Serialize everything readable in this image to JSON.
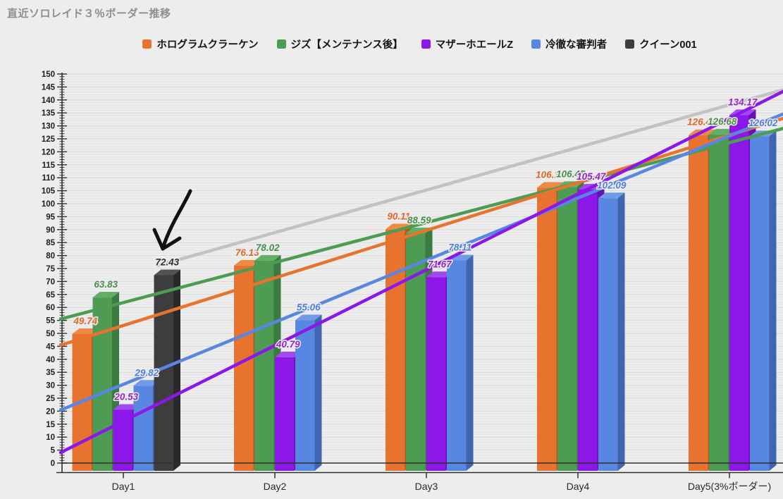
{
  "title": "直近ソロレイド３％ボーダー推移",
  "chart_data": {
    "type": "bar",
    "subtype": "3d-bars-with-trend-lines",
    "categories": [
      "Day1",
      "Day2",
      "Day3",
      "Day4",
      "Day5(3%ボーダー)"
    ],
    "series": [
      {
        "name": "ホログラムクラーケン",
        "color": "#E8732E",
        "color_side": "#B85820",
        "color_top": "#ED8B45",
        "label_color": "#E0662A",
        "values": [
          49.74,
          76.13,
          90.11,
          106.16,
          126.43
        ],
        "labels": [
          "49.74",
          "76.13",
          "90.11",
          "106.16",
          "126.43"
        ]
      },
      {
        "name": "ジズ【メンテナンス後】",
        "color": "#4E9C53",
        "color_side": "#3B7A40",
        "color_top": "#63AE67",
        "label_color": "#478F4C",
        "values": [
          63.83,
          78.02,
          88.59,
          106.45,
          126.68
        ],
        "labels": [
          "63.83",
          "78.02",
          "88.59",
          "106.45",
          "126.68"
        ]
      },
      {
        "name": "マザーホエールZ",
        "color": "#8B17E8",
        "color_side": "#6C10B6",
        "color_top": "#A348F1",
        "label_color": "#9325C9",
        "values": [
          20.53,
          40.79,
          71.67,
          105.47,
          134.17
        ],
        "labels": [
          "20.53",
          "40.79",
          "71.67",
          "105.47",
          "134.17"
        ]
      },
      {
        "name": "冷徹な審判者",
        "color": "#5787E0",
        "color_side": "#4066B2",
        "color_top": "#6F9BEA",
        "label_color": "#4E80E0",
        "values": [
          29.82,
          55.06,
          78.11,
          102.09,
          126.02
        ],
        "labels": [
          "29.82",
          "55.06",
          "78.11",
          "102.09",
          "126.02"
        ]
      },
      {
        "name": "クイーン001",
        "color": "#3D3D3F",
        "color_side": "#29292B",
        "color_top": "#525254",
        "label_color": "#2F2F31",
        "values": [
          72.43,
          null,
          null,
          null,
          null
        ],
        "labels": [
          "72.43",
          null,
          null,
          null,
          null
        ],
        "trend_line": {
          "from_day": 1,
          "from_value": 72.43,
          "to_day": 5,
          "to_value": 138.1,
          "color": "#C2C2C2"
        }
      }
    ],
    "ylim": [
      0,
      150
    ],
    "ytick_step": 5,
    "ytick_minor_step": 1,
    "grid": true,
    "legend_position": "top",
    "trendlines": "linear trend line per series, drawn across full plot width",
    "annotation": {
      "type": "hand-drawn-arrow",
      "target": "クイーン001 Day1 bar (72.43)",
      "color": "#111111"
    }
  },
  "axis_color": "#2E2E2E",
  "background": "#EDEDED"
}
